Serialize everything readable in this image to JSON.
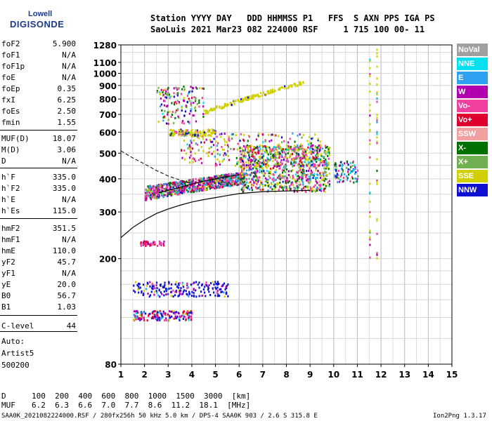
{
  "logo": {
    "line1": "Lowell",
    "line2": "DIGISONDE"
  },
  "header": {
    "labels": "Station YYYY DAY   DDD HHMMSS P1   FFS  S AXN PPS IGA PS",
    "values": "SaoLuis 2021 Mar23 082 224000 RSF     1 715 100 00- 11"
  },
  "params": [
    {
      "key": "foF2",
      "value": "5.900"
    },
    {
      "key": "foF1",
      "value": "N/A"
    },
    {
      "key": "foF1p",
      "value": "N/A"
    },
    {
      "key": "foE",
      "value": "N/A"
    },
    {
      "key": "foEp",
      "value": "0.35"
    },
    {
      "key": "fxI",
      "value": "6.25"
    },
    {
      "key": "foEs",
      "value": "2.50"
    },
    {
      "key": "fmin",
      "value": "1.55"
    },
    {
      "key": "MUF(D)",
      "value": "18.07"
    },
    {
      "key": "M(D)",
      "value": "3.06"
    },
    {
      "key": "D",
      "value": "N/A"
    },
    {
      "key": "h`F",
      "value": "335.0"
    },
    {
      "key": "h`F2",
      "value": "335.0"
    },
    {
      "key": "h`E",
      "value": "N/A"
    },
    {
      "key": "h`Es",
      "value": "115.0"
    },
    {
      "key": "hmF2",
      "value": "351.5"
    },
    {
      "key": "hmF1",
      "value": "N/A"
    },
    {
      "key": "hmE",
      "value": "110.0"
    },
    {
      "key": "yF2",
      "value": "45.7"
    },
    {
      "key": "yF1",
      "value": "N/A"
    },
    {
      "key": "yE",
      "value": "20.0"
    },
    {
      "key": "B0",
      "value": "56.7"
    },
    {
      "key": "B1",
      "value": "1.03"
    },
    {
      "key": "C-level",
      "value": "44"
    }
  ],
  "auto": {
    "line1": "Auto:",
    "line2": "Artist5",
    "line3": "500200"
  },
  "legend": [
    {
      "label": "NoVal",
      "color": "#a0a0a0"
    },
    {
      "label": "NNE",
      "color": "#00e0f0"
    },
    {
      "label": "E",
      "color": "#30a0f0"
    },
    {
      "label": "W",
      "color": "#b000b0"
    },
    {
      "label": "Vo-",
      "color": "#f040a0"
    },
    {
      "label": "Vo+",
      "color": "#e00030"
    },
    {
      "label": "SSW",
      "color": "#f0a0a0"
    },
    {
      "label": "X-",
      "color": "#007000"
    },
    {
      "label": "X+",
      "color": "#70b050"
    },
    {
      "label": "SSE",
      "color": "#d0d000"
    },
    {
      "label": "NNW",
      "color": "#1010d0"
    }
  ],
  "chart_data": {
    "type": "scatter",
    "xlim": [
      1,
      15
    ],
    "ylim": [
      80,
      1280
    ],
    "y_log_scale": true,
    "x_ticks": [
      1,
      2,
      3,
      4,
      5,
      6,
      7,
      8,
      9,
      10,
      11,
      12,
      13,
      14,
      15
    ],
    "y_ticks": [
      80,
      200,
      300,
      400,
      500,
      600,
      700,
      800,
      900,
      1000,
      1100,
      1280
    ],
    "grid": true,
    "profile_curve": [
      [
        1.0,
        240
      ],
      [
        1.5,
        262
      ],
      [
        2.0,
        280
      ],
      [
        2.5,
        296
      ],
      [
        3.0,
        308
      ],
      [
        3.5,
        318
      ],
      [
        4.0,
        327
      ],
      [
        4.5,
        334
      ],
      [
        5.0,
        340
      ],
      [
        5.5,
        346
      ],
      [
        6.0,
        352
      ],
      [
        7.0,
        358
      ],
      [
        8.0,
        360
      ],
      [
        9.0,
        362
      ]
    ],
    "virtual_height_curve": [
      [
        2.6,
        355
      ],
      [
        3.0,
        362
      ],
      [
        3.5,
        372
      ],
      [
        4.0,
        382
      ],
      [
        4.5,
        392
      ],
      [
        5.0,
        400
      ],
      [
        5.5,
        408
      ],
      [
        6.0,
        414
      ]
    ],
    "dashed_curve": [
      [
        1.0,
        510
      ],
      [
        1.5,
        480
      ],
      [
        2.0,
        455
      ],
      [
        2.5,
        430
      ],
      [
        3.0,
        410
      ],
      [
        3.5,
        396
      ],
      [
        4.0,
        385
      ]
    ],
    "echo_regions": [
      {
        "name": "F-trace",
        "x0": 2.0,
        "x1": 6.2,
        "y0": 335,
        "y1": 420,
        "n": 900
      },
      {
        "name": "F-trace-high",
        "x0": 6.0,
        "x1": 9.8,
        "y0": 360,
        "y1": 540,
        "n": 900
      },
      {
        "name": "F-2hop",
        "x0": 3.5,
        "x1": 9.5,
        "y0": 450,
        "y1": 600,
        "n": 300
      },
      {
        "name": "F-3hop",
        "x0": 3.0,
        "x1": 5.0,
        "y0": 585,
        "y1": 620,
        "n": 120
      },
      {
        "name": "F-oblique",
        "x0": 4.5,
        "x1": 8.7,
        "y0": 720,
        "y1": 930,
        "n": 150
      },
      {
        "name": "F-upper",
        "x0": 2.5,
        "x1": 4.5,
        "y0": 650,
        "y1": 900,
        "n": 150
      },
      {
        "name": "Es",
        "x0": 1.5,
        "x1": 5.5,
        "y0": 145,
        "y1": 165,
        "n": 200
      },
      {
        "name": "E-low",
        "x0": 1.5,
        "x1": 4.0,
        "y0": 118,
        "y1": 128,
        "n": 160
      },
      {
        "name": "Es-weak",
        "x0": 1.8,
        "x1": 2.8,
        "y0": 225,
        "y1": 235,
        "n": 50
      },
      {
        "name": "spread",
        "x0": 10.0,
        "x1": 11.0,
        "y0": 390,
        "y1": 470,
        "n": 80
      },
      {
        "name": "interference",
        "x0": 11.5,
        "x1": 11.8,
        "y0": 200,
        "y1": 1250,
        "n": 60
      }
    ],
    "d_table": {
      "d_label": "D",
      "d_values": "100  200  400  600  800  1000  1500  3000  [km]",
      "muf_label": "MUF",
      "muf_values": "6.2  6.3  6.6  7.0  7.7  8.6  11.2  18.1  [MHz]"
    }
  },
  "footer": {
    "file": "SAA0K_2021082224000.RSF / 280fx256h 50 kHz 5.0 km / DPS-4 SAA0K 903 / 2.6 S 315.8 E",
    "version": "Ion2Png 1.3.17"
  }
}
